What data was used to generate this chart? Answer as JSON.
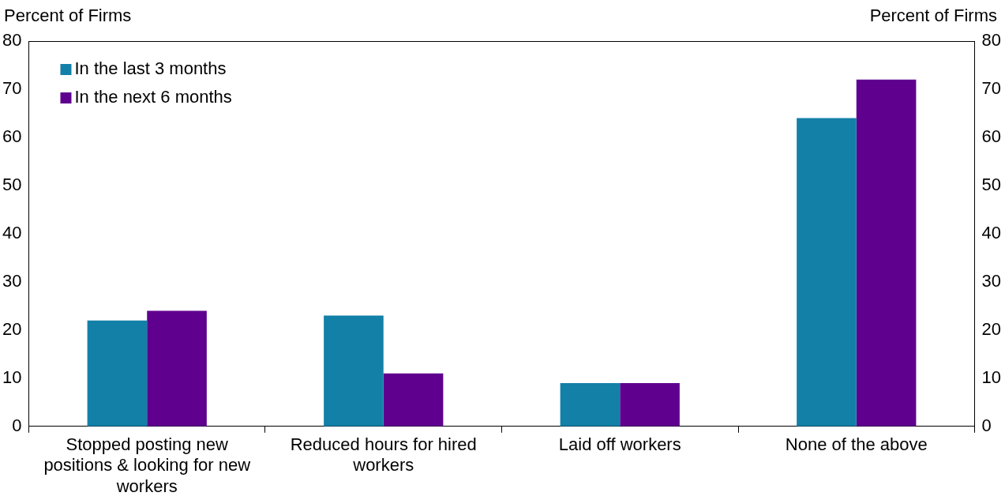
{
  "chart_data": {
    "type": "bar",
    "ylabel": "Percent of Firms",
    "y2label": "Percent of Firms",
    "categories": [
      "Stopped posting new positions & looking for new workers",
      "Reduced hours for hired workers",
      "Laid off workers",
      "None of the above"
    ],
    "series": [
      {
        "name": "In the last 3 months",
        "color": "#1380a8",
        "values": [
          22,
          23,
          9,
          64
        ]
      },
      {
        "name": "In the next 6 months",
        "color": "#5f008f",
        "values": [
          24,
          11,
          9,
          72
        ]
      }
    ],
    "ylim": [
      0,
      80
    ],
    "yticks": [
      0,
      10,
      20,
      30,
      40,
      50,
      60,
      70,
      80
    ],
    "y2lim": [
      0,
      80
    ],
    "y2ticks": [
      0,
      10,
      20,
      30,
      40,
      50,
      60,
      70,
      80
    ],
    "grid": false,
    "legend": "top left"
  }
}
